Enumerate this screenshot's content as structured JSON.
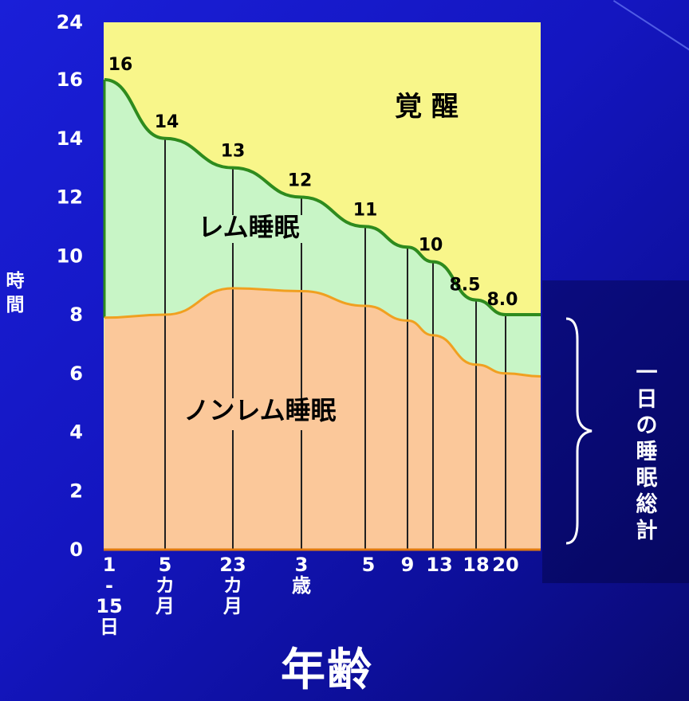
{
  "chart_data": {
    "type": "area",
    "ylabel": "時間",
    "xlabel": "年齢",
    "ylim": [
      0,
      24
    ],
    "yticks": [
      0,
      2,
      4,
      6,
      8,
      10,
      12,
      14,
      16,
      24
    ],
    "x_categories": [
      "1\n-\n15\n日",
      "5\nカ\n月",
      "23\nカ\n月",
      "3\n歳",
      "5",
      "9",
      "13",
      "18",
      "20"
    ],
    "series": [
      {
        "name": "ノンレム睡眠",
        "values": [
          7.9,
          8.0,
          8.9,
          8.8,
          8.3,
          7.8,
          7.3,
          6.3,
          6.0
        ]
      },
      {
        "name": "レム睡眠",
        "values": [
          8.1,
          6.0,
          4.1,
          3.2,
          2.7,
          2.5,
          2.5,
          2.2,
          2.0
        ]
      }
    ],
    "total_sleep": [
      16,
      14,
      13,
      12,
      11,
      10.3,
      10,
      8.5,
      8.0
    ],
    "data_labels": [
      "16",
      "14",
      "13",
      "12",
      "11",
      "",
      "10",
      "8.5",
      "8.0"
    ],
    "region_labels": {
      "awake": "覚 醒",
      "rem": "レム睡眠",
      "nonrem": "ノンレム睡眠"
    },
    "bracket_label": "一日の睡眠総計",
    "colors": {
      "awake": "#f8f68a",
      "rem": "#c8f5c6",
      "nonrem": "#fbc89a",
      "total_line": "#2e8b1e",
      "nonrem_line": "#f0a020",
      "vertical_lines": "#202020"
    }
  }
}
